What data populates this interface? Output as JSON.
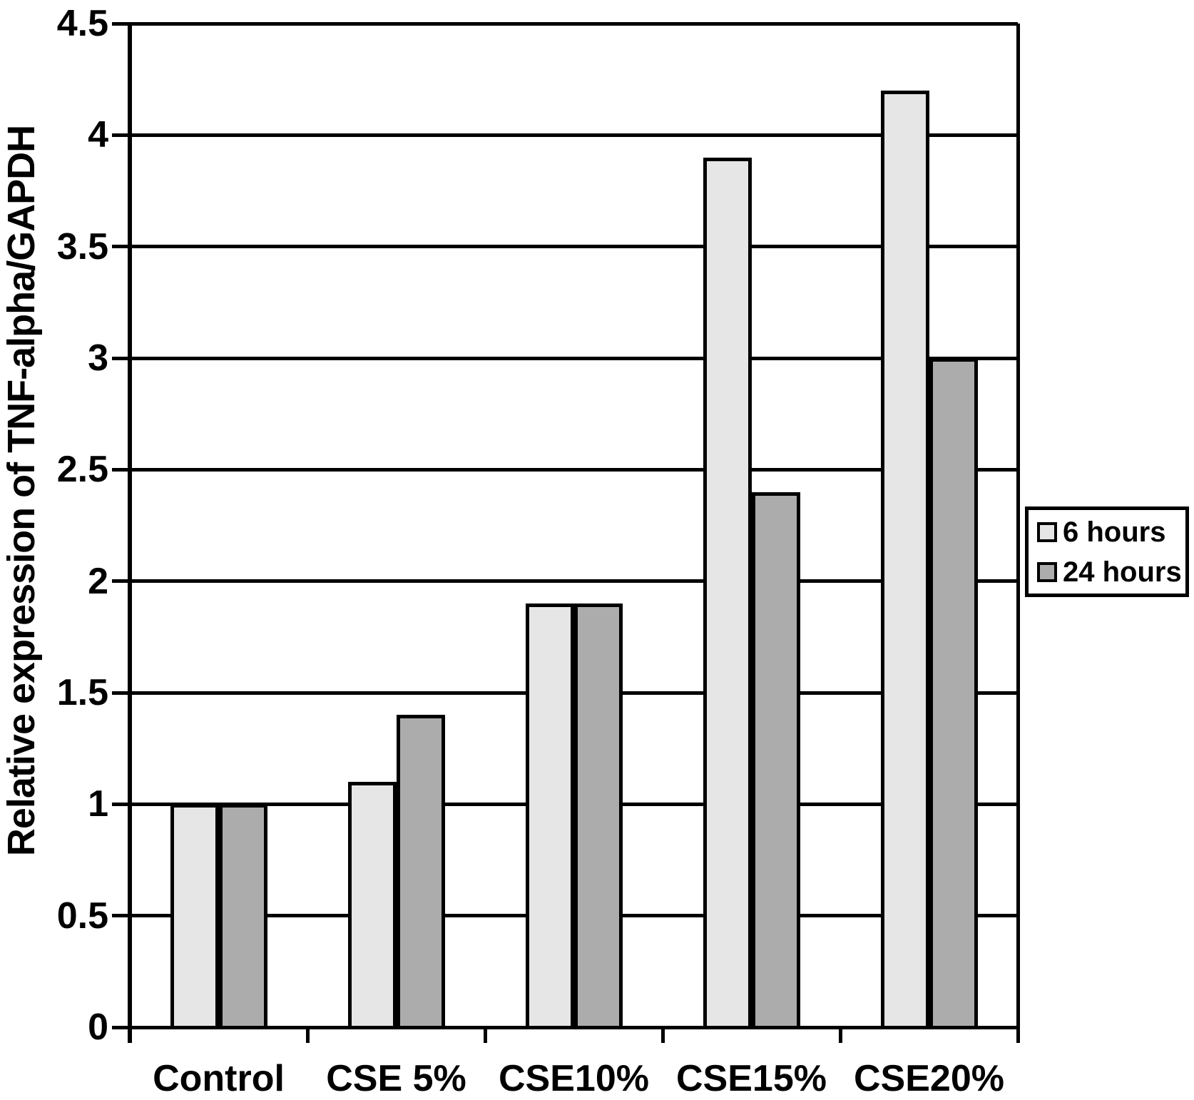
{
  "chart_data": {
    "type": "bar",
    "title": "",
    "xlabel": "",
    "ylabel": "Relative expression of TNF-alpha/GAPDH",
    "categories": [
      "Control",
      "CSE 5%",
      "CSE10%",
      "CSE15%",
      "CSE20%"
    ],
    "series": [
      {
        "name": "6 hours",
        "color": "#e6e6e6",
        "values": [
          1.0,
          1.1,
          1.9,
          3.9,
          4.2
        ]
      },
      {
        "name": "24 hours",
        "color": "#acacac",
        "values": [
          1.0,
          1.4,
          1.9,
          2.4,
          3.0
        ]
      }
    ],
    "ylim": [
      0,
      4.5
    ],
    "ytick_step": 0.5,
    "yticks": [
      "4.5",
      "4",
      "3.5",
      "3",
      "2.5",
      "2",
      "1.5",
      "1",
      "0.5",
      "0"
    ],
    "grid": true,
    "legend_position": "right",
    "axis_color": "#000000",
    "background_color": "#ffffff",
    "bar_border_color": "#000000"
  }
}
